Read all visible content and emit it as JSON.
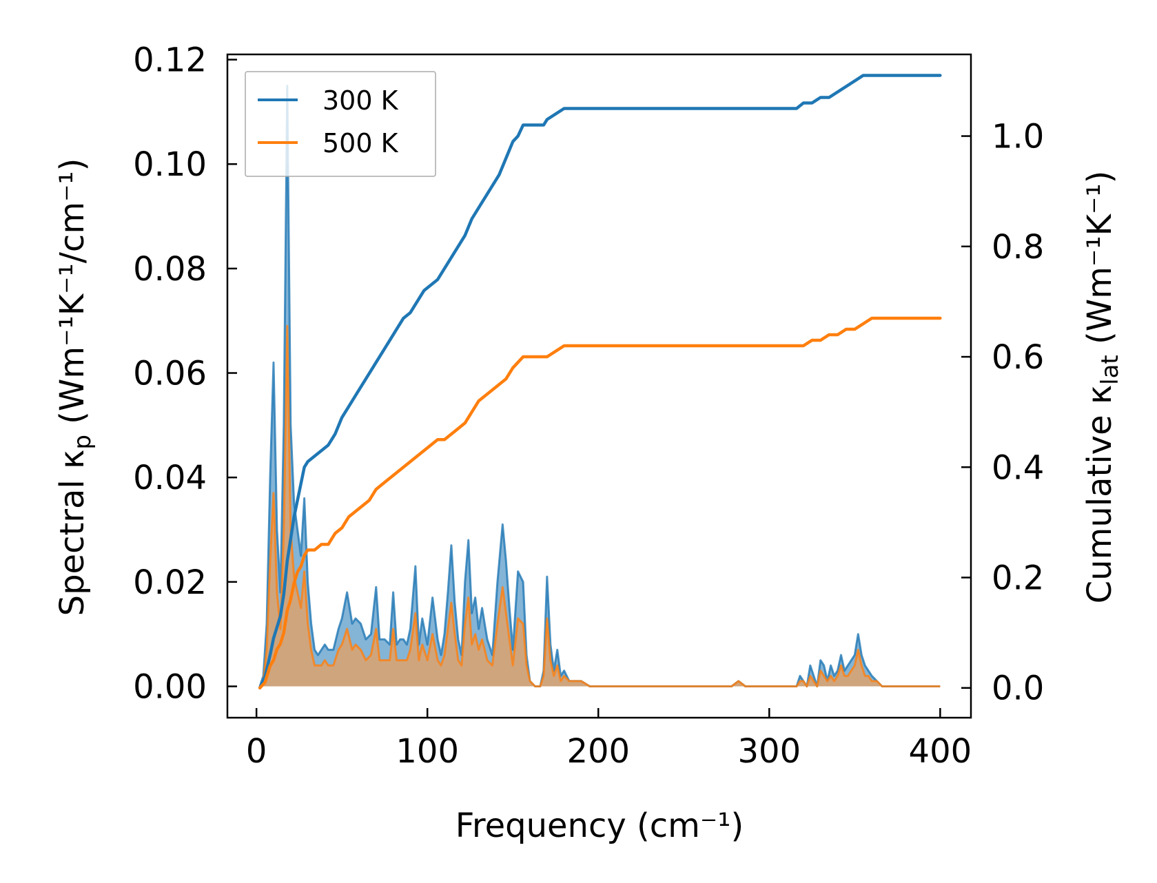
{
  "chart_data": {
    "type": "line",
    "xlabel": "Frequency (cm⁻¹)",
    "ylabel_left": {
      "main": "Spectral κ",
      "sub": "p",
      "units": " (Wm⁻¹K⁻¹/cm⁻¹)"
    },
    "ylabel_right": {
      "main": "Cumulative κ",
      "sub": "lat",
      "units": " (Wm⁻¹K⁻¹)"
    },
    "xlim": [
      -17,
      418
    ],
    "ylim_left": [
      -0.006,
      0.121
    ],
    "ylim_right": [
      -0.054,
      1.148
    ],
    "x_ticks": [
      0,
      100,
      200,
      300,
      400
    ],
    "x_tick_labels": [
      "0",
      "100",
      "200",
      "300",
      "400"
    ],
    "y_left_ticks": [
      0.0,
      0.02,
      0.04,
      0.06,
      0.08,
      0.1,
      0.12
    ],
    "y_left_tick_labels": [
      "0.00",
      "0.02",
      "0.04",
      "0.06",
      "0.08",
      "0.10",
      "0.12"
    ],
    "y_right_ticks": [
      0.0,
      0.2,
      0.4,
      0.6,
      0.8,
      1.0
    ],
    "y_right_tick_labels": [
      "0.0",
      "0.2",
      "0.4",
      "0.6",
      "0.8",
      "1.0"
    ],
    "legend": {
      "position": "upper-left",
      "entries": [
        "300 K",
        "500 K"
      ]
    },
    "colors": {
      "300 K": "#1f77b4",
      "500 K": "#ff7f0e",
      "fill_300": "#1f77b4",
      "fill_500": "#e8a060"
    },
    "spectral_series": [
      {
        "name": "300 K",
        "x": [
          2,
          4,
          6,
          8,
          10,
          12,
          14,
          16,
          18,
          20,
          22,
          24,
          26,
          28,
          30,
          32,
          34,
          36,
          38,
          40,
          42,
          45,
          48,
          50,
          53,
          56,
          58,
          61,
          64,
          67,
          70,
          72,
          75,
          78,
          80,
          82,
          84,
          86,
          88,
          90,
          93,
          95,
          97,
          100,
          103,
          106,
          108,
          110,
          112,
          114,
          116,
          118,
          120,
          122,
          124,
          126,
          128,
          130,
          132,
          135,
          138,
          141,
          144,
          146,
          148,
          150,
          153,
          156,
          158,
          160,
          163,
          166,
          168,
          170,
          172,
          174,
          176,
          178,
          180,
          183,
          186,
          190,
          195,
          200,
          210,
          230,
          260,
          278,
          282,
          286,
          290,
          300,
          310,
          316,
          318,
          320,
          322,
          324,
          326,
          328,
          330,
          332,
          334,
          336,
          338,
          340,
          342,
          344,
          346,
          348,
          350,
          352,
          354,
          356,
          358,
          360,
          363,
          366,
          370,
          380,
          400
        ],
        "y": [
          0.0,
          0.002,
          0.012,
          0.04,
          0.062,
          0.03,
          0.018,
          0.05,
          0.115,
          0.05,
          0.035,
          0.03,
          0.025,
          0.036,
          0.02,
          0.012,
          0.007,
          0.006,
          0.007,
          0.008,
          0.007,
          0.007,
          0.011,
          0.013,
          0.018,
          0.012,
          0.013,
          0.012,
          0.009,
          0.01,
          0.019,
          0.009,
          0.009,
          0.008,
          0.018,
          0.008,
          0.009,
          0.009,
          0.008,
          0.011,
          0.023,
          0.008,
          0.013,
          0.008,
          0.017,
          0.009,
          0.006,
          0.01,
          0.018,
          0.027,
          0.016,
          0.009,
          0.006,
          0.02,
          0.028,
          0.014,
          0.017,
          0.011,
          0.015,
          0.009,
          0.006,
          0.02,
          0.031,
          0.024,
          0.015,
          0.007,
          0.022,
          0.02,
          0.006,
          0.001,
          0.0,
          0.0,
          0.003,
          0.021,
          0.008,
          0.003,
          0.007,
          0.002,
          0.003,
          0.001,
          0.001,
          0.001,
          0.0,
          0.0,
          0.0,
          0.0,
          0.0,
          0.0,
          0.001,
          0.0,
          0.0,
          0.0,
          0.0,
          0.0,
          0.002,
          0.001,
          0.0,
          0.004,
          0.002,
          0.0,
          0.005,
          0.004,
          0.001,
          0.004,
          0.002,
          0.003,
          0.006,
          0.003,
          0.004,
          0.005,
          0.006,
          0.01,
          0.006,
          0.004,
          0.003,
          0.002,
          0.001,
          0.0,
          0.0,
          0.0,
          0.0
        ]
      },
      {
        "name": "500 K",
        "x": [
          2,
          4,
          6,
          8,
          10,
          12,
          14,
          16,
          18,
          20,
          22,
          24,
          26,
          28,
          30,
          32,
          34,
          36,
          38,
          40,
          42,
          45,
          48,
          50,
          53,
          56,
          58,
          61,
          64,
          67,
          70,
          72,
          75,
          78,
          80,
          82,
          84,
          86,
          88,
          90,
          93,
          95,
          97,
          100,
          103,
          106,
          108,
          110,
          112,
          114,
          116,
          118,
          120,
          122,
          124,
          126,
          128,
          130,
          132,
          135,
          138,
          141,
          144,
          146,
          148,
          150,
          153,
          156,
          158,
          160,
          163,
          166,
          168,
          170,
          172,
          174,
          176,
          178,
          180,
          183,
          186,
          190,
          195,
          200,
          210,
          230,
          260,
          278,
          282,
          286,
          290,
          300,
          310,
          316,
          318,
          320,
          322,
          324,
          326,
          328,
          330,
          332,
          334,
          336,
          338,
          340,
          342,
          344,
          346,
          348,
          350,
          352,
          354,
          356,
          358,
          360,
          363,
          366,
          370,
          380,
          400
        ],
        "y": [
          0.0,
          0.001,
          0.007,
          0.024,
          0.037,
          0.018,
          0.011,
          0.03,
          0.069,
          0.03,
          0.021,
          0.018,
          0.015,
          0.022,
          0.012,
          0.007,
          0.004,
          0.004,
          0.004,
          0.005,
          0.004,
          0.004,
          0.007,
          0.008,
          0.011,
          0.007,
          0.008,
          0.007,
          0.005,
          0.006,
          0.011,
          0.005,
          0.005,
          0.005,
          0.011,
          0.005,
          0.005,
          0.005,
          0.005,
          0.007,
          0.014,
          0.005,
          0.008,
          0.005,
          0.01,
          0.005,
          0.004,
          0.006,
          0.011,
          0.016,
          0.01,
          0.005,
          0.004,
          0.012,
          0.017,
          0.008,
          0.01,
          0.007,
          0.009,
          0.005,
          0.004,
          0.012,
          0.019,
          0.014,
          0.009,
          0.004,
          0.013,
          0.012,
          0.004,
          0.001,
          0.0,
          0.0,
          0.002,
          0.013,
          0.005,
          0.002,
          0.004,
          0.001,
          0.002,
          0.001,
          0.001,
          0.001,
          0.0,
          0.0,
          0.0,
          0.0,
          0.0,
          0.0,
          0.001,
          0.0,
          0.0,
          0.0,
          0.0,
          0.0,
          0.001,
          0.001,
          0.0,
          0.002,
          0.001,
          0.0,
          0.003,
          0.002,
          0.001,
          0.002,
          0.001,
          0.002,
          0.004,
          0.002,
          0.002,
          0.003,
          0.004,
          0.007,
          0.004,
          0.002,
          0.002,
          0.001,
          0.001,
          0.0,
          0.0,
          0.0,
          0.0
        ]
      }
    ],
    "cumulative_series": [
      {
        "name": "300 K",
        "x": [
          2,
          5,
          8,
          10,
          12,
          14,
          16,
          18,
          20,
          22,
          24,
          26,
          28,
          30,
          34,
          38,
          42,
          46,
          50,
          54,
          58,
          62,
          66,
          70,
          74,
          78,
          82,
          86,
          90,
          94,
          98,
          102,
          106,
          110,
          114,
          118,
          122,
          126,
          130,
          134,
          138,
          142,
          146,
          150,
          153,
          156,
          160,
          164,
          168,
          170,
          175,
          180,
          185,
          190,
          200,
          220,
          260,
          280,
          290,
          310,
          316,
          320,
          325,
          330,
          335,
          340,
          345,
          350,
          355,
          360,
          365,
          370,
          380,
          400
        ],
        "y": [
          0.0,
          0.02,
          0.06,
          0.09,
          0.11,
          0.13,
          0.17,
          0.23,
          0.27,
          0.31,
          0.34,
          0.37,
          0.4,
          0.41,
          0.42,
          0.43,
          0.44,
          0.46,
          0.49,
          0.51,
          0.53,
          0.55,
          0.57,
          0.59,
          0.61,
          0.63,
          0.65,
          0.67,
          0.68,
          0.7,
          0.72,
          0.73,
          0.74,
          0.76,
          0.78,
          0.8,
          0.82,
          0.85,
          0.87,
          0.89,
          0.91,
          0.93,
          0.96,
          0.99,
          1.0,
          1.02,
          1.02,
          1.02,
          1.02,
          1.03,
          1.04,
          1.05,
          1.05,
          1.05,
          1.05,
          1.05,
          1.05,
          1.05,
          1.05,
          1.05,
          1.05,
          1.06,
          1.06,
          1.07,
          1.07,
          1.08,
          1.09,
          1.1,
          1.11,
          1.11,
          1.11,
          1.11,
          1.11,
          1.11
        ]
      },
      {
        "name": "500 K",
        "x": [
          2,
          5,
          8,
          10,
          12,
          14,
          16,
          18,
          20,
          22,
          24,
          26,
          28,
          30,
          34,
          38,
          42,
          46,
          50,
          54,
          58,
          62,
          66,
          70,
          74,
          78,
          82,
          86,
          90,
          94,
          98,
          102,
          106,
          110,
          114,
          118,
          122,
          126,
          130,
          134,
          138,
          142,
          146,
          150,
          153,
          156,
          160,
          164,
          168,
          170,
          175,
          180,
          185,
          190,
          200,
          220,
          260,
          280,
          290,
          310,
          316,
          320,
          325,
          330,
          335,
          340,
          345,
          350,
          355,
          360,
          365,
          370,
          380,
          400
        ],
        "y": [
          0.0,
          0.01,
          0.04,
          0.05,
          0.07,
          0.08,
          0.1,
          0.14,
          0.16,
          0.19,
          0.21,
          0.22,
          0.24,
          0.25,
          0.25,
          0.26,
          0.26,
          0.28,
          0.29,
          0.31,
          0.32,
          0.33,
          0.34,
          0.36,
          0.37,
          0.38,
          0.39,
          0.4,
          0.41,
          0.42,
          0.43,
          0.44,
          0.45,
          0.45,
          0.46,
          0.47,
          0.48,
          0.5,
          0.52,
          0.53,
          0.54,
          0.55,
          0.56,
          0.58,
          0.59,
          0.6,
          0.6,
          0.6,
          0.6,
          0.6,
          0.61,
          0.62,
          0.62,
          0.62,
          0.62,
          0.62,
          0.62,
          0.62,
          0.62,
          0.62,
          0.62,
          0.62,
          0.63,
          0.63,
          0.64,
          0.64,
          0.65,
          0.65,
          0.66,
          0.67,
          0.67,
          0.67,
          0.67,
          0.67
        ]
      }
    ]
  }
}
